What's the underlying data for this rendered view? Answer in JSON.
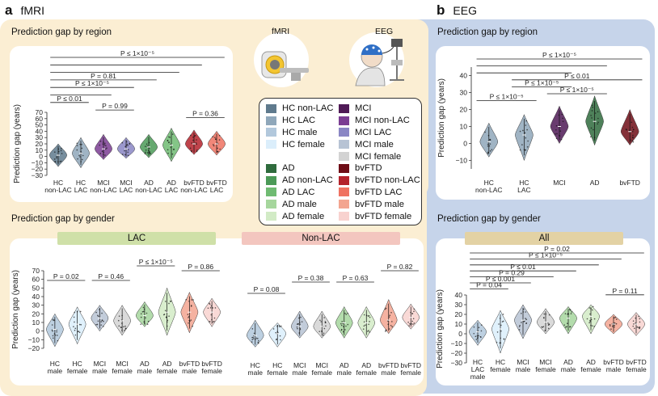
{
  "panel_a": {
    "letter": "a",
    "name": "fMRI"
  },
  "panel_b": {
    "letter": "b",
    "name": "EEG"
  },
  "device_labels": {
    "fmri": "fMRI",
    "eeg": "EEG"
  },
  "legend": {
    "left": [
      {
        "label": "HC non-LAC",
        "color": "#5f7a8d"
      },
      {
        "label": "HC LAC",
        "color": "#8fa7ba"
      },
      {
        "label": "HC male",
        "color": "#b2c8dc"
      },
      {
        "label": "HC female",
        "color": "#dbeefb"
      },
      {
        "label": "",
        "color": "#ffffff"
      },
      {
        "label": "AD",
        "color": "#2f6b3d"
      },
      {
        "label": "AD non-LAC",
        "color": "#4b9a57"
      },
      {
        "label": "AD LAC",
        "color": "#6fbb72"
      },
      {
        "label": "AD male",
        "color": "#a6d69d"
      },
      {
        "label": "AD female",
        "color": "#d2ebc6"
      }
    ],
    "right": [
      {
        "label": "MCI",
        "color": "#4f1a56"
      },
      {
        "label": "MCI non-LAC",
        "color": "#7b3d93"
      },
      {
        "label": "MCI LAC",
        "color": "#8a86c4"
      },
      {
        "label": "MCI male",
        "color": "#b7c3d4"
      },
      {
        "label": "MCI female",
        "color": "#d3d3d3"
      },
      {
        "label": "bvFTD",
        "color": "#6e0d16"
      },
      {
        "label": "bvFTD non-LAC",
        "color": "#b4222b"
      },
      {
        "label": "bvFTD LAC",
        "color": "#ef7261"
      },
      {
        "label": "bvFTD male",
        "color": "#f3a590"
      },
      {
        "label": "bvFTD female",
        "color": "#f8d2cf"
      }
    ]
  },
  "group_tags": {
    "lac": "LAC",
    "nonlac": "Non-LAC",
    "all": "All"
  },
  "chart_data": [
    {
      "id": "a_region",
      "type": "violin",
      "title": "Prediction gap by region",
      "ylabel": "Prediction gap (years)",
      "ylim": [
        -30,
        70
      ],
      "yticks": [
        -30,
        -20,
        -10,
        0,
        10,
        20,
        30,
        40,
        50,
        60,
        70
      ],
      "categories": [
        "HC\nnon-LAC",
        "HC\nLAC",
        "MCI\nnon-LAC",
        "MCI\nLAC",
        "AD\nnon-LAC",
        "AD\nLAC",
        "bvFTD\nnon-LAC",
        "bvFTD\nLAC"
      ],
      "colors": [
        "#5f7a8d",
        "#8fa7ba",
        "#7b3d93",
        "#8a86c4",
        "#4b9a57",
        "#6fbb72",
        "#b4222b",
        "#ef7261"
      ],
      "medians": [
        2,
        5,
        12,
        12,
        15,
        18,
        20,
        20
      ],
      "ranges": [
        [
          -16,
          20
        ],
        [
          -18,
          30
        ],
        [
          -5,
          35
        ],
        [
          -3,
          30
        ],
        [
          -2,
          35
        ],
        [
          -8,
          45
        ],
        [
          3,
          42
        ],
        [
          2,
          40
        ]
      ],
      "brackets": [
        {
          "from": 0,
          "to": 7,
          "label": "P ≤ 1×10⁻⁵"
        },
        {
          "from": 0,
          "to": 6,
          "label": ""
        },
        {
          "from": 0,
          "to": 5,
          "label": ""
        },
        {
          "from": 0,
          "to": 4,
          "label": "P = 0.81"
        },
        {
          "from": 0,
          "to": 3,
          "label": "P ≤ 1×10⁻⁵"
        },
        {
          "from": 0,
          "to": 2,
          "label": ""
        },
        {
          "from": 0,
          "to": 1,
          "label": "P ≤ 0.01"
        },
        {
          "from": 2,
          "to": 3,
          "label": "P = 0.99"
        },
        {
          "from": 6,
          "to": 7,
          "label": "P = 0.36"
        }
      ]
    },
    {
      "id": "b_region",
      "type": "violin",
      "title": "Prediction gap by region",
      "ylabel": "Prediction gap (years)",
      "ylim": [
        -15,
        45
      ],
      "yticks": [
        -10,
        0,
        10,
        20,
        30,
        40
      ],
      "categories": [
        "HC\nnon-LAC",
        "HC\nLAC",
        "MCI",
        "AD",
        "bvFTD"
      ],
      "colors": [
        "#8fa7ba",
        "#8fa7ba",
        "#4f1a56",
        "#2f6b3d",
        "#6e0d16"
      ],
      "medians": [
        1,
        5,
        10,
        13,
        7
      ],
      "ranges": [
        [
          -8,
          12
        ],
        [
          -10,
          17
        ],
        [
          0,
          22
        ],
        [
          -1,
          28
        ],
        [
          -1,
          20
        ]
      ],
      "brackets": [
        {
          "from": 0,
          "to": 4,
          "label": "P ≤ 1×10⁻⁵"
        },
        {
          "from": 0,
          "to": 3,
          "label": ""
        },
        {
          "from": 0,
          "to": 2,
          "label": ""
        },
        {
          "from": 1,
          "to": 4,
          "label": "P ≤ 0.01"
        },
        {
          "from": 1,
          "to": 2,
          "label": "P ≤ 1×10⁻⁵"
        },
        {
          "from": 2,
          "to": 3,
          "label": "P ≤ 1×10⁻⁵"
        },
        {
          "from": 0,
          "to": 1,
          "label": "P ≤ 1×10⁻⁵"
        }
      ]
    },
    {
      "id": "a_gender_lac",
      "type": "violin",
      "title": "Prediction gap by gender",
      "ylabel": "Prediction gap (years)",
      "ylim": [
        -20,
        70
      ],
      "yticks": [
        -20,
        -10,
        0,
        10,
        20,
        30,
        40,
        50,
        60,
        70
      ],
      "categories": [
        "HC\nmale",
        "HC\nfemale",
        "MCI\nmale",
        "MCI\nfemale",
        "AD\nmale",
        "AD\nfemale",
        "bvFTD\nmale",
        "bvFTD\nfemale"
      ],
      "colors": [
        "#b2c8dc",
        "#dbeefb",
        "#b7c3d4",
        "#d3d3d3",
        "#a6d69d",
        "#d2ebc6",
        "#f3a590",
        "#f8d2cf"
      ],
      "medians": [
        2,
        8,
        15,
        12,
        18,
        22,
        22,
        22
      ],
      "ranges": [
        [
          -18,
          20
        ],
        [
          -15,
          28
        ],
        [
          0,
          30
        ],
        [
          -5,
          30
        ],
        [
          5,
          34
        ],
        [
          -5,
          50
        ],
        [
          -2,
          45
        ],
        [
          5,
          38
        ]
      ],
      "brackets": [
        {
          "from": 0,
          "to": 1,
          "label": "P = 0.02"
        },
        {
          "from": 2,
          "to": 3,
          "label": "P = 0.46"
        },
        {
          "from": 4,
          "to": 5,
          "label": "P ≤ 1×10⁻⁵"
        },
        {
          "from": 6,
          "to": 7,
          "label": "P = 0.86"
        }
      ]
    },
    {
      "id": "a_gender_nonlac",
      "type": "violin",
      "title": "",
      "ylabel": "",
      "ylim": [
        -20,
        70
      ],
      "yticks": [
        -20,
        -10,
        0,
        10,
        20,
        30,
        40,
        50,
        60,
        70
      ],
      "categories": [
        "HC\nmale",
        "HC\nfemale",
        "MCI\nmale",
        "MCI\nfemale",
        "AD\nmale",
        "AD\nfemale",
        "bvFTD\nmale",
        "bvFTD\nfemale"
      ],
      "colors": [
        "#b2c8dc",
        "#dbeefb",
        "#b7c3d4",
        "#d3d3d3",
        "#a6d69d",
        "#d2ebc6",
        "#f3a590",
        "#f8d2cf"
      ],
      "medians": [
        -2,
        0,
        8,
        8,
        12,
        12,
        15,
        18
      ],
      "ranges": [
        [
          -15,
          15
        ],
        [
          -15,
          12
        ],
        [
          -5,
          25
        ],
        [
          -5,
          25
        ],
        [
          -5,
          30
        ],
        [
          -5,
          30
        ],
        [
          0,
          38
        ],
        [
          5,
          33
        ]
      ],
      "brackets": [
        {
          "from": 0,
          "to": 1,
          "label": "P = 0.08"
        },
        {
          "from": 2,
          "to": 3,
          "label": "P = 0.38"
        },
        {
          "from": 4,
          "to": 5,
          "label": "P = 0.63"
        },
        {
          "from": 6,
          "to": 7,
          "label": "P = 0.82"
        }
      ]
    },
    {
      "id": "b_gender",
      "type": "violin",
      "title": "Prediction gap by gender",
      "ylabel": "Prediction gap (years)",
      "ylim": [
        -30,
        40
      ],
      "yticks": [
        -30,
        -20,
        -10,
        0,
        10,
        20,
        30,
        40
      ],
      "categories": [
        "HC\nLAC\nmale",
        "HC\nfemale",
        "MCI\nmale",
        "MCI\nfemale",
        "AD\nmale",
        "AD\nfemale",
        "bvFTD\nmale",
        "bvFTD\nfemale"
      ],
      "colors": [
        "#b2c8dc",
        "#dbeefb",
        "#b7c3d4",
        "#d3d3d3",
        "#a6d69d",
        "#d2ebc6",
        "#f3a590",
        "#f8d2cf"
      ],
      "medians": [
        2,
        5,
        14,
        12,
        16,
        18,
        10,
        10
      ],
      "ranges": [
        [
          -12,
          14
        ],
        [
          -20,
          24
        ],
        [
          -5,
          30
        ],
        [
          0,
          26
        ],
        [
          0,
          28
        ],
        [
          0,
          30
        ],
        [
          0,
          20
        ],
        [
          -2,
          22
        ]
      ],
      "brackets": [
        {
          "from": 0,
          "to": 7,
          "label": "P = 0.02"
        },
        {
          "from": 0,
          "to": 6,
          "label": "P ≤ 1×10⁻⁵"
        },
        {
          "from": 0,
          "to": 5,
          "label": ""
        },
        {
          "from": 0,
          "to": 4,
          "label": "P ≤ 0.01"
        },
        {
          "from": 0,
          "to": 3,
          "label": "P = 0.29"
        },
        {
          "from": 0,
          "to": 2,
          "label": "P ≤ 0.001"
        },
        {
          "from": 0,
          "to": 1,
          "label": "P = 0.04"
        },
        {
          "from": 6,
          "to": 7,
          "label": "P = 0.11"
        }
      ]
    }
  ]
}
